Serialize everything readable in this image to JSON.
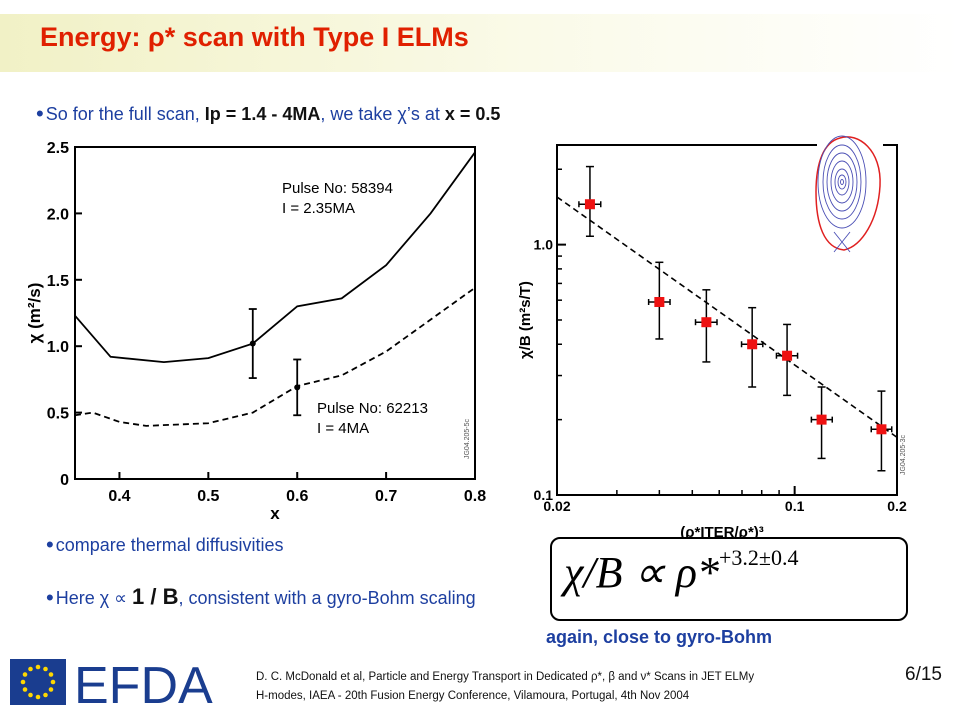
{
  "slide": {
    "title": "Energy: ρ* scan with Type I ELMs",
    "bullet1": {
      "text_a": "So for the full scan, ",
      "bold_a": "Ip = 1.4 - 4MA",
      "text_b": ", we take χ’s at ",
      "bold_b": "x = 0.5"
    },
    "bullet2": "compare thermal diffusivities",
    "bullet3": {
      "text_a": "Here χ ∝ ",
      "big": "1 / B",
      "text_b": ", consistent with a gyro-Bohm scaling"
    },
    "formula": {
      "lhs": "χ/B ∝ ρ*",
      "exponent": "+3.2±0.4"
    },
    "caption": "again, close to gyro-Bohm",
    "citation_line1": "D. C. McDonald et al, Particle and Energy Transport in Dedicated ρ*, β and ν* Scans in JET ELMy",
    "citation_line2": "H-modes, IAEA - 20th Fusion Energy Conference, Vilamoura, Portugal,  4th Nov 2004",
    "page": "6/15",
    "logo_text": "EFDA",
    "colors": {
      "title": "#e02000",
      "text_blue": "#1d3fa0",
      "marker": "#ee1111"
    }
  },
  "chart_data": [
    {
      "type": "line",
      "xlabel": "x",
      "ylabel": "χ (m²/s)",
      "xlim": [
        0.35,
        0.8
      ],
      "ylim": [
        0,
        2.5
      ],
      "xticks": [
        "0.4",
        "0.5",
        "0.6",
        "0.7",
        "0.8"
      ],
      "yticks": [
        "0",
        "0.5",
        "1.0",
        "1.5",
        "2.0",
        "2.5"
      ],
      "watermark": "JG04.205-5c",
      "series": [
        {
          "style": "solid",
          "annotation": [
            "Pulse No: 58394",
            "I = 2.35MA"
          ],
          "points": [
            [
              0.35,
              1.23
            ],
            [
              0.39,
              0.92
            ],
            [
              0.45,
              0.88
            ],
            [
              0.5,
              0.91
            ],
            [
              0.55,
              1.02
            ],
            [
              0.6,
              1.3
            ],
            [
              0.65,
              1.36
            ],
            [
              0.7,
              1.61
            ],
            [
              0.75,
              2.0
            ],
            [
              0.8,
              2.46
            ]
          ],
          "marker": {
            "x": 0.55,
            "y": 1.02,
            "err": 0.26
          }
        },
        {
          "style": "dashed",
          "annotation": [
            "Pulse No: 62213",
            "I = 4MA"
          ],
          "points": [
            [
              0.35,
              0.48
            ],
            [
              0.37,
              0.5
            ],
            [
              0.4,
              0.43
            ],
            [
              0.43,
              0.4
            ],
            [
              0.5,
              0.42
            ],
            [
              0.55,
              0.5
            ],
            [
              0.6,
              0.7
            ],
            [
              0.65,
              0.78
            ],
            [
              0.7,
              0.96
            ],
            [
              0.75,
              1.2
            ],
            [
              0.8,
              1.44
            ]
          ],
          "marker": {
            "x": 0.6,
            "y": 0.69,
            "err": 0.21
          }
        }
      ]
    },
    {
      "type": "scatter",
      "xscale": "log",
      "yscale": "log",
      "xlabel": "(ρ*ITER/ρ*)³",
      "ylabel": "χ/B (m²s/T)",
      "xlim": [
        0.02,
        0.2
      ],
      "ylim": [
        0.1,
        2.5
      ],
      "xticks": [
        {
          "v": 0.02,
          "label": "0.02"
        },
        {
          "v": 0.1,
          "label": "0.1"
        },
        {
          "v": 0.2,
          "label": "0.2"
        }
      ],
      "yticks": [
        {
          "v": 0.1,
          "label": "0.1"
        },
        {
          "v": 1.0,
          "label": "1.0"
        }
      ],
      "watermark": "JG04.205-3c",
      "points": [
        {
          "x": 0.025,
          "y": 1.45,
          "yerr": [
            1.08,
            2.05
          ],
          "xerr": [
            0.0232,
            0.0269
          ]
        },
        {
          "x": 0.04,
          "y": 0.59,
          "yerr": [
            0.42,
            0.85
          ],
          "xerr": [
            0.0372,
            0.043
          ]
        },
        {
          "x": 0.055,
          "y": 0.49,
          "yerr": [
            0.34,
            0.66
          ],
          "xerr": [
            0.0511,
            0.0591
          ]
        },
        {
          "x": 0.075,
          "y": 0.4,
          "yerr": [
            0.27,
            0.56
          ],
          "xerr": [
            0.0698,
            0.0806
          ]
        },
        {
          "x": 0.095,
          "y": 0.36,
          "yerr": [
            0.25,
            0.48
          ],
          "xerr": [
            0.0884,
            0.102
          ]
        },
        {
          "x": 0.12,
          "y": 0.2,
          "yerr": [
            0.14,
            0.27
          ],
          "xerr": [
            0.112,
            0.129
          ]
        },
        {
          "x": 0.18,
          "y": 0.183,
          "yerr": [
            0.125,
            0.26
          ],
          "xerr": [
            0.168,
            0.193
          ]
        }
      ],
      "fit": {
        "style": "dashed",
        "from": [
          0.02,
          1.55
        ],
        "to": [
          0.2,
          0.17
        ]
      }
    }
  ]
}
